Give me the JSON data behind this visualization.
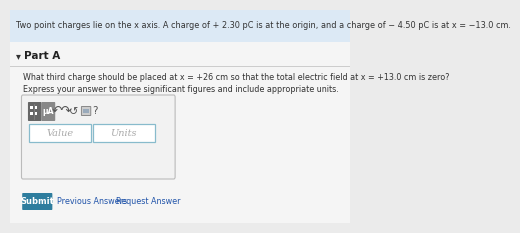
{
  "header_text": "Two point charges lie on the x axis. A charge of + 2.30 pC is at the origin, and a charge of − 4.50 pC is at x = −13.0 cm.",
  "header_bg": "#dce9f5",
  "body_bg": "#ebebeb",
  "part_bg": "#f5f5f5",
  "part_label": "Part A",
  "question_line1": "What third charge should be placed at x = +26 cm so that the total electric field at x = +13.0 cm is zero?",
  "question_line2": "Express your answer to three significant figures and include appropriate units.",
  "value_placeholder": "Value",
  "units_placeholder": "Units",
  "submit_text": "Submit",
  "prev_text": "Previous Answers",
  "req_text": "Request Answer",
  "submit_bg": "#2e7d9e",
  "submit_fg": "#ffffff",
  "link_color": "#2255aa",
  "toolbar_bg": "#e8e8e8",
  "dark_btn_bg": "#777777",
  "input_border": "#88bbcc",
  "separator_color": "#cccccc",
  "text_color": "#333333"
}
